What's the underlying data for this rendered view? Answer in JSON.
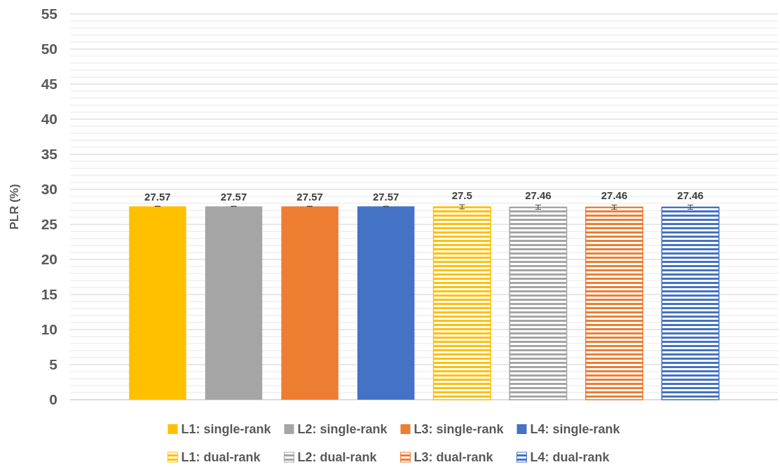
{
  "chart_data": {
    "type": "bar",
    "ylabel": "PLR (%)",
    "categories": [
      null
    ],
    "series": [
      {
        "name": "L1: single-rank",
        "color": "#ffc000",
        "values": [
          27.57
        ],
        "errors": [
          0.02
        ]
      },
      {
        "name": "L2: single-rank",
        "color": "#a5a5a5",
        "values": [
          27.57
        ],
        "errors": [
          0.02
        ]
      },
      {
        "name": "L3: single-rank",
        "color": "#ed7d31",
        "values": [
          27.57
        ],
        "errors": [
          0.02
        ]
      },
      {
        "name": "L4: single-rank",
        "color": "#4472c4",
        "values": [
          27.57
        ],
        "errors": [
          0.02
        ]
      },
      {
        "name": "L1: dual-rank",
        "color": "#ffc000",
        "values": [
          27.5
        ],
        "errors": [
          0.3
        ]
      },
      {
        "name": "L2: dual-rank",
        "color": "#a5a5a5",
        "values": [
          27.46
        ],
        "errors": [
          0.3
        ]
      },
      {
        "name": "L3: dual-rank",
        "color": "#ed7d31",
        "values": [
          27.46
        ],
        "errors": [
          0.3
        ]
      },
      {
        "name": "L4: dual-rank",
        "color": "#4472c4",
        "values": [
          27.46
        ],
        "errors": [
          0.3
        ]
      }
    ],
    "ylim": [
      0,
      55
    ],
    "yticks": [
      0,
      {
        "value": 1,
        "label": null
      },
      {
        "value": 2,
        "label": null
      },
      {
        "value": 3,
        "label": null
      },
      {
        "value": 4,
        "label": null
      },
      5,
      {
        "value": 6,
        "label": null
      },
      {
        "value": 7,
        "label": null
      },
      {
        "value": 8,
        "label": null
      },
      {
        "value": 9,
        "label": null
      },
      10,
      {
        "value": 11,
        "label": null
      },
      {
        "value": 12,
        "label": null
      },
      {
        "value": 13,
        "label": null
      },
      {
        "value": 14,
        "label": null
      },
      15,
      {
        "value": 16,
        "label": null
      },
      {
        "value": 17,
        "label": null
      },
      {
        "value": 18,
        "label": null
      },
      {
        "value": 19,
        "label": null
      },
      20,
      {
        "value": 21,
        "label": null
      },
      {
        "value": 22,
        "label": null
      },
      {
        "value": 23,
        "label": null
      },
      {
        "value": 24,
        "label": null
      },
      25,
      {
        "value": 26,
        "label": null
      },
      {
        "value": 27,
        "label": null
      },
      {
        "value": 28,
        "label": null
      },
      {
        "value": 29,
        "label": null
      },
      30,
      {
        "value": 31,
        "label": null
      },
      {
        "value": 32,
        "label": null
      },
      {
        "value": 33,
        "label": null
      },
      {
        "value": 34,
        "label": null
      },
      35,
      {
        "value": 36,
        "label": null
      },
      {
        "value": 37,
        "label": null
      },
      {
        "value": 38,
        "label": null
      },
      {
        "value": 39,
        "label": null
      },
      40,
      {
        "value": 41,
        "label": null
      },
      {
        "value": 42,
        "label": null
      },
      {
        "value": 43,
        "label": null
      },
      {
        "value": 44,
        "label": null
      },
      45,
      {
        "value": 46,
        "label": null
      },
      {
        "value": 47,
        "label": null
      },
      {
        "value": 48,
        "label": null
      },
      {
        "value": 49,
        "label": null
      },
      50,
      {
        "value": 51,
        "label": null
      },
      {
        "value": 52,
        "label": null
      },
      {
        "value": 53,
        "label": null
      },
      {
        "value": 54,
        "label": null
      },
      55
    ],
    "grid": "y",
    "legend": "bottom",
    "data_labels": true
  }
}
